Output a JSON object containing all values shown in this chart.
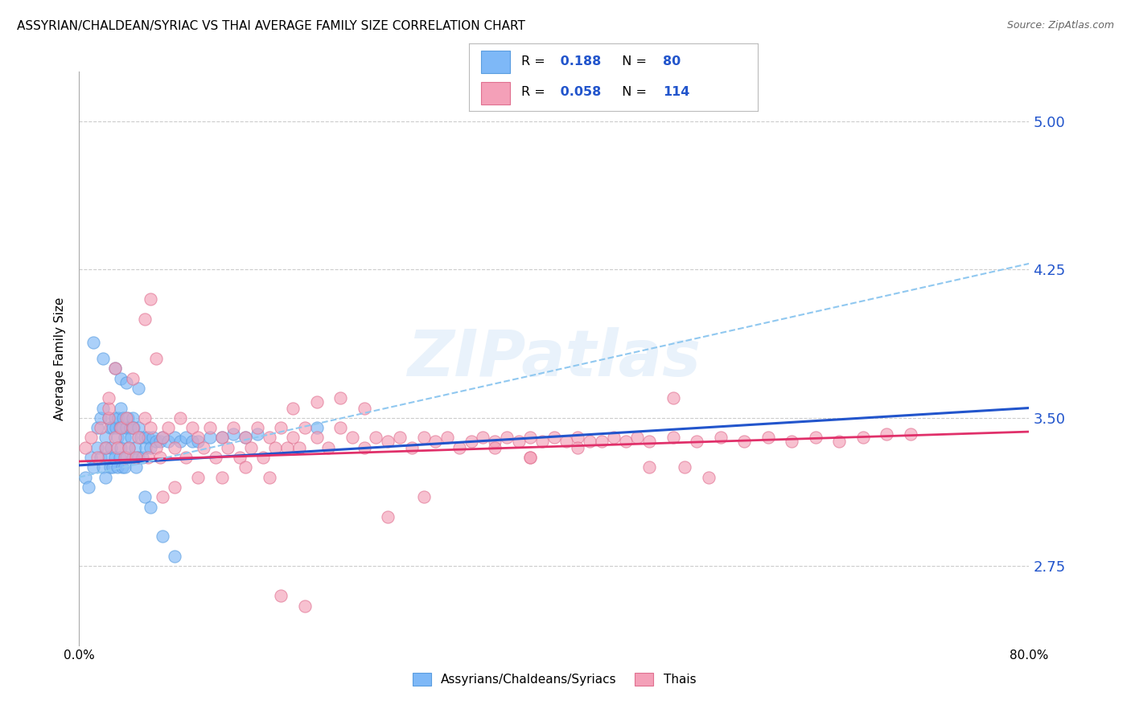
{
  "title": "ASSYRIAN/CHALDEAN/SYRIAC VS THAI AVERAGE FAMILY SIZE CORRELATION CHART",
  "source": "Source: ZipAtlas.com",
  "ylabel": "Average Family Size",
  "xmin": 0.0,
  "xmax": 0.8,
  "ymin": 2.35,
  "ymax": 5.25,
  "yticks": [
    2.75,
    3.5,
    4.25,
    5.0
  ],
  "xtick_labels": [
    "0.0%",
    "",
    "",
    "",
    "80.0%"
  ],
  "xtick_values": [
    0.0,
    0.2,
    0.4,
    0.6,
    0.8
  ],
  "blue_R": 0.188,
  "blue_N": 80,
  "pink_R": 0.058,
  "pink_N": 114,
  "blue_color": "#7eb8f7",
  "pink_color": "#f4a0b8",
  "blue_edge_color": "#5a9de0",
  "pink_edge_color": "#e07090",
  "blue_line_color": "#2255cc",
  "pink_line_color": "#e0306a",
  "dashed_line_color": "#90c8f0",
  "legend_label_blue": "Assyrians/Chaldeans/Syriacs",
  "legend_label_pink": "Thais",
  "watermark": "ZIPatlas",
  "blue_scatter_x": [
    0.005,
    0.008,
    0.01,
    0.012,
    0.015,
    0.015,
    0.018,
    0.018,
    0.02,
    0.02,
    0.022,
    0.022,
    0.023,
    0.025,
    0.025,
    0.026,
    0.026,
    0.027,
    0.028,
    0.028,
    0.03,
    0.03,
    0.031,
    0.032,
    0.032,
    0.033,
    0.034,
    0.034,
    0.035,
    0.035,
    0.036,
    0.036,
    0.037,
    0.038,
    0.038,
    0.04,
    0.04,
    0.041,
    0.042,
    0.043,
    0.044,
    0.045,
    0.045,
    0.046,
    0.047,
    0.048,
    0.05,
    0.05,
    0.052,
    0.053,
    0.055,
    0.056,
    0.058,
    0.06,
    0.062,
    0.065,
    0.068,
    0.07,
    0.075,
    0.08,
    0.085,
    0.09,
    0.095,
    0.1,
    0.11,
    0.12,
    0.13,
    0.14,
    0.15,
    0.2,
    0.012,
    0.02,
    0.03,
    0.035,
    0.04,
    0.05,
    0.055,
    0.06,
    0.07,
    0.08
  ],
  "blue_scatter_y": [
    3.2,
    3.15,
    3.3,
    3.25,
    3.45,
    3.35,
    3.5,
    3.3,
    3.55,
    3.25,
    3.4,
    3.2,
    3.35,
    3.5,
    3.3,
    3.45,
    3.25,
    3.35,
    3.45,
    3.25,
    3.5,
    3.3,
    3.45,
    3.4,
    3.25,
    3.5,
    3.45,
    3.3,
    3.55,
    3.35,
    3.45,
    3.25,
    3.5,
    3.4,
    3.25,
    3.45,
    3.3,
    3.5,
    3.35,
    3.45,
    3.4,
    3.5,
    3.3,
    3.45,
    3.35,
    3.25,
    3.45,
    3.3,
    3.4,
    3.3,
    3.4,
    3.35,
    3.4,
    3.35,
    3.4,
    3.38,
    3.38,
    3.4,
    3.38,
    3.4,
    3.38,
    3.4,
    3.38,
    3.38,
    3.4,
    3.4,
    3.42,
    3.4,
    3.42,
    3.45,
    3.88,
    3.8,
    3.75,
    3.7,
    3.68,
    3.65,
    3.1,
    3.05,
    2.9,
    2.8
  ],
  "pink_scatter_x": [
    0.005,
    0.01,
    0.015,
    0.018,
    0.022,
    0.025,
    0.03,
    0.032,
    0.035,
    0.038,
    0.04,
    0.042,
    0.045,
    0.048,
    0.05,
    0.055,
    0.058,
    0.06,
    0.065,
    0.068,
    0.07,
    0.075,
    0.08,
    0.085,
    0.09,
    0.095,
    0.1,
    0.105,
    0.11,
    0.115,
    0.12,
    0.125,
    0.13,
    0.135,
    0.14,
    0.145,
    0.15,
    0.155,
    0.16,
    0.165,
    0.17,
    0.175,
    0.18,
    0.185,
    0.19,
    0.2,
    0.21,
    0.22,
    0.23,
    0.24,
    0.25,
    0.26,
    0.27,
    0.28,
    0.29,
    0.3,
    0.31,
    0.32,
    0.33,
    0.34,
    0.35,
    0.36,
    0.37,
    0.38,
    0.39,
    0.4,
    0.41,
    0.42,
    0.43,
    0.44,
    0.45,
    0.46,
    0.47,
    0.48,
    0.5,
    0.52,
    0.54,
    0.56,
    0.58,
    0.6,
    0.62,
    0.64,
    0.66,
    0.68,
    0.7,
    0.025,
    0.07,
    0.08,
    0.1,
    0.12,
    0.14,
    0.16,
    0.03,
    0.045,
    0.38,
    0.5,
    0.055,
    0.06,
    0.065,
    0.025,
    0.18,
    0.2,
    0.22,
    0.24,
    0.35,
    0.38,
    0.42,
    0.48,
    0.51,
    0.53,
    0.17,
    0.19,
    0.26,
    0.29
  ],
  "pink_scatter_y": [
    3.35,
    3.4,
    3.3,
    3.45,
    3.35,
    3.5,
    3.4,
    3.35,
    3.45,
    3.3,
    3.5,
    3.35,
    3.45,
    3.3,
    3.4,
    3.5,
    3.3,
    3.45,
    3.35,
    3.3,
    3.4,
    3.45,
    3.35,
    3.5,
    3.3,
    3.45,
    3.4,
    3.35,
    3.45,
    3.3,
    3.4,
    3.35,
    3.45,
    3.3,
    3.4,
    3.35,
    3.45,
    3.3,
    3.4,
    3.35,
    3.45,
    3.35,
    3.4,
    3.35,
    3.45,
    3.4,
    3.35,
    3.45,
    3.4,
    3.35,
    3.4,
    3.38,
    3.4,
    3.35,
    3.4,
    3.38,
    3.4,
    3.35,
    3.38,
    3.4,
    3.38,
    3.4,
    3.38,
    3.4,
    3.38,
    3.4,
    3.38,
    3.4,
    3.38,
    3.38,
    3.4,
    3.38,
    3.4,
    3.38,
    3.4,
    3.38,
    3.4,
    3.38,
    3.4,
    3.38,
    3.4,
    3.38,
    3.4,
    3.42,
    3.42,
    3.55,
    3.1,
    3.15,
    3.2,
    3.2,
    3.25,
    3.2,
    3.75,
    3.7,
    3.3,
    3.6,
    4.0,
    4.1,
    3.8,
    3.6,
    3.55,
    3.58,
    3.6,
    3.55,
    3.35,
    3.3,
    3.35,
    3.25,
    3.25,
    3.2,
    2.6,
    2.55,
    3.0,
    3.1
  ],
  "blue_trendline_x": [
    0.0,
    0.8
  ],
  "blue_trendline_y": [
    3.26,
    3.55
  ],
  "pink_trendline_x": [
    0.0,
    0.8
  ],
  "pink_trendline_y": [
    3.28,
    3.43
  ],
  "dashed_trendline_x": [
    0.0,
    0.8
  ],
  "dashed_trendline_y": [
    3.2,
    4.28
  ],
  "right_axis_color": "#2255cc",
  "grid_color": "#cccccc",
  "background_color": "#ffffff",
  "left_axis_color": "#aaaaaa"
}
